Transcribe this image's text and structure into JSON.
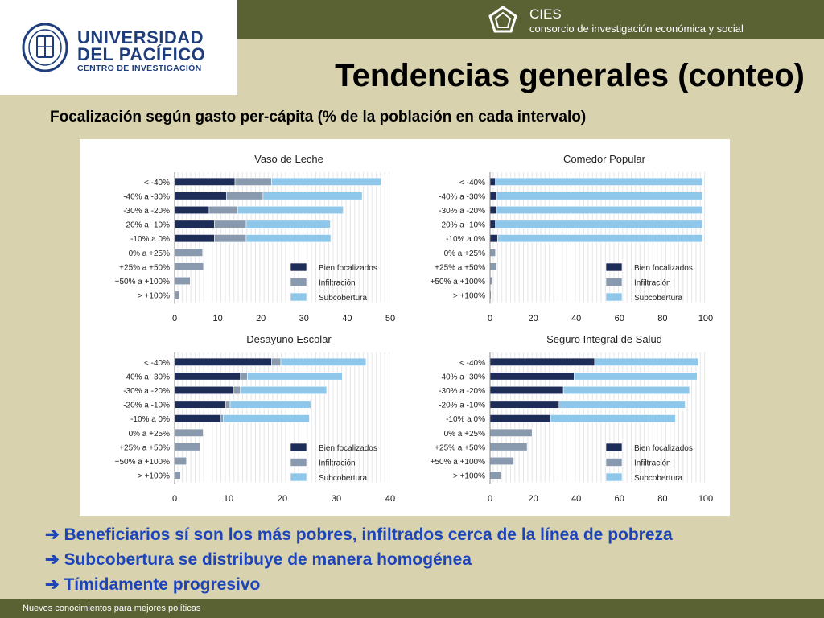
{
  "header": {
    "university_line1": "UNIVERSIDAD",
    "university_line2": "DEL PACÍFICO",
    "university_line3": "CENTRO DE INVESTIGACIÓN",
    "org_name": "CIES",
    "org_subtitle": "consorcio de investigación económica y social"
  },
  "slide": {
    "title": "Tendencias generales (conteo)",
    "subtitle": "Focalización según gasto per-cápita (% de la población en cada intervalo)"
  },
  "bullets": [
    {
      "arrow": "➔",
      "text": "Beneficiarios sí son los más pobres, infiltrados cerca de la línea de pobreza"
    },
    {
      "arrow": "➔",
      "text": "Subcobertura se distribuye de manera homogénea"
    },
    {
      "arrow": "➔",
      "text": "Tímidamente progresivo"
    }
  ],
  "footer": {
    "text": "Nuevos conocimientos para mejores políticas"
  },
  "colors": {
    "bien_focalizados": "#1e2d57",
    "infiltracion": "#8a9aae",
    "subcobertura": "#8ec7ea"
  },
  "chart_data": [
    {
      "type": "bar",
      "orientation": "horizontal",
      "stacked": true,
      "title": "Vaso de Leche",
      "categories": [
        "< -40%",
        "-40% a -30%",
        "-30% a -20%",
        "-20% a -10%",
        "-10% a 0%",
        "0% a +25%",
        "+25% a +50%",
        "+50% a +100%",
        "> +100%"
      ],
      "series": [
        {
          "name": "Bien focalizados",
          "values": [
            14,
            12,
            8,
            9.2,
            9.2,
            0,
            0,
            0,
            0
          ]
        },
        {
          "name": "Infiltración",
          "values": [
            8.5,
            8.5,
            6.6,
            7.4,
            7.4,
            6.5,
            6.7,
            3.6,
            1.1
          ]
        },
        {
          "name": "Subcobertura",
          "values": [
            25.5,
            23,
            24.5,
            19.5,
            19.6,
            0,
            0,
            0,
            0
          ]
        }
      ],
      "xlim": [
        0,
        50
      ],
      "xticks": [
        0,
        10,
        20,
        30,
        40,
        50
      ],
      "legend": "bottom-right"
    },
    {
      "type": "bar",
      "orientation": "horizontal",
      "stacked": true,
      "title": "Comedor Popular",
      "categories": [
        "< -40%",
        "-40% a -30%",
        "-30% a -20%",
        "-20% a -10%",
        "-10% a 0%",
        "0% a +25%",
        "+25% a +50%",
        "+50% a +100%",
        "> +100%"
      ],
      "series": [
        {
          "name": "Bien focalizados",
          "values": [
            2.5,
            3,
            3,
            2.5,
            3.5,
            0,
            0,
            0,
            0
          ]
        },
        {
          "name": "Infiltración",
          "values": [
            0,
            0,
            0,
            0,
            0,
            2.5,
            3,
            1,
            0.5
          ]
        },
        {
          "name": "Subcobertura",
          "values": [
            96,
            95.5,
            95.5,
            96,
            95,
            0,
            0,
            0,
            0
          ]
        }
      ],
      "xlim": [
        0,
        100
      ],
      "xticks": [
        0,
        20,
        40,
        60,
        80,
        100
      ],
      "legend": "bottom-right"
    },
    {
      "type": "bar",
      "orientation": "horizontal",
      "stacked": true,
      "title": "Desayuno Escolar",
      "categories": [
        "< -40%",
        "-40% a -30%",
        "-30% a -20%",
        "-20% a -10%",
        "-10% a 0%",
        "0% a +25%",
        "+25% a +50%",
        "+50% a +100%",
        "> +100%"
      ],
      "series": [
        {
          "name": "Bien focalizados",
          "values": [
            18,
            12.2,
            11,
            9.5,
            8.5,
            0,
            0,
            0,
            0
          ]
        },
        {
          "name": "Infiltración",
          "values": [
            1.7,
            1.3,
            1.2,
            0.8,
            0.5,
            5.3,
            4.7,
            2.2,
            1.1
          ]
        },
        {
          "name": "Subcobertura",
          "values": [
            15.8,
            17.6,
            16,
            15,
            16,
            0,
            0,
            0,
            0
          ]
        }
      ],
      "xlim": [
        0,
        40
      ],
      "xticks": [
        0,
        10,
        20,
        30,
        40
      ],
      "legend": "bottom-right"
    },
    {
      "type": "bar",
      "orientation": "horizontal",
      "stacked": true,
      "title": "Seguro Integral de Salud",
      "categories": [
        "< -40%",
        "-40% a -30%",
        "-30% a -20%",
        "-20% a -10%",
        "-10% a 0%",
        "0% a +25%",
        "+25% a +50%",
        "+50% a +100%",
        "> +100%"
      ],
      "series": [
        {
          "name": "Bien focalizados",
          "values": [
            48.5,
            39,
            34,
            32,
            28,
            0,
            0,
            0,
            0
          ]
        },
        {
          "name": "Infiltración",
          "values": [
            0,
            0,
            0,
            0,
            0,
            19.5,
            17.2,
            11,
            5
          ]
        },
        {
          "name": "Subcobertura",
          "values": [
            48,
            57,
            58.5,
            58.5,
            58,
            0,
            0,
            0,
            0
          ]
        }
      ],
      "xlim": [
        0,
        100
      ],
      "xticks": [
        0,
        20,
        40,
        60,
        80,
        100
      ],
      "legend": "bottom-right"
    }
  ]
}
